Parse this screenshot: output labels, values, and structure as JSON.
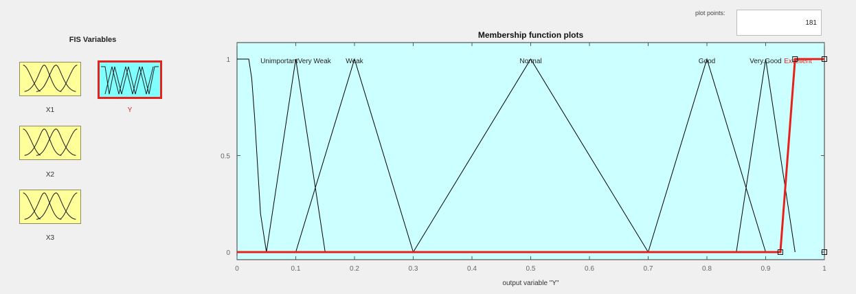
{
  "fis_panel": {
    "title": "FIS Variables",
    "variables": [
      {
        "label": "X1",
        "selected": false
      },
      {
        "label": "Y",
        "selected": true
      },
      {
        "label": "X2",
        "selected": false
      },
      {
        "label": "X3",
        "selected": false
      }
    ],
    "input_color": "#ffff99",
    "output_color": "#80ffff"
  },
  "plot": {
    "title": "Membership function plots",
    "plot_points_label": "plot points:",
    "plot_points_value": "181",
    "background": "#ccffff",
    "highlight_color": "#e8201a"
  },
  "chart_data": {
    "type": "line",
    "title": "Membership function plots",
    "xlabel": "output variable \"Y\"",
    "ylabel": "",
    "xlim": [
      0,
      1
    ],
    "ylim": [
      0,
      1
    ],
    "xticks": [
      "0",
      "0.1",
      "0.2",
      "0.3",
      "0.4",
      "0.5",
      "0.6",
      "0.7",
      "0.8",
      "0.9",
      "1"
    ],
    "yticks": [
      "0",
      "0.5",
      "1"
    ],
    "grid": false,
    "series": [
      {
        "name": "Unimportant",
        "x": [
          0,
          0.02,
          0.025,
          0.03,
          0.035,
          0.04,
          0.05
        ],
        "y": [
          1,
          1,
          0.9,
          0.7,
          0.45,
          0.2,
          0
        ],
        "color": "#000000"
      },
      {
        "name": "Very Weak",
        "x": [
          0.05,
          0.1,
          0.15
        ],
        "y": [
          0,
          1,
          0
        ],
        "color": "#000000"
      },
      {
        "name": "Weak",
        "x": [
          0.1,
          0.2,
          0.3
        ],
        "y": [
          0,
          1,
          0
        ],
        "color": "#000000"
      },
      {
        "name": "Normal",
        "x": [
          0.3,
          0.5,
          0.7
        ],
        "y": [
          0,
          1,
          0
        ],
        "color": "#000000"
      },
      {
        "name": "Good",
        "x": [
          0.7,
          0.8,
          0.9
        ],
        "y": [
          0,
          1,
          0
        ],
        "color": "#000000"
      },
      {
        "name": "Very Good",
        "x": [
          0.85,
          0.9,
          0.95
        ],
        "y": [
          0,
          1,
          0
        ],
        "color": "#000000"
      },
      {
        "name": "Excellent",
        "x": [
          0,
          0.925,
          0.95,
          1
        ],
        "y": [
          0,
          0,
          1,
          1
        ],
        "color": "#e8201a",
        "highlighted": true
      }
    ],
    "labels": [
      {
        "text": "UnimportantVery Weak",
        "x": 0.1
      },
      {
        "text": "Weak",
        "x": 0.2
      },
      {
        "text": "Normal",
        "x": 0.5
      },
      {
        "text": "Good",
        "x": 0.8
      },
      {
        "text": "Very.Good",
        "x": 0.9
      },
      {
        "text": "Excellent",
        "x": 0.955,
        "highlighted": true
      }
    ],
    "handles": [
      {
        "x": 0.925,
        "y": 0
      },
      {
        "x": 0.95,
        "y": 1
      },
      {
        "x": 1,
        "y": 1
      },
      {
        "x": 1,
        "y": 0
      }
    ]
  }
}
